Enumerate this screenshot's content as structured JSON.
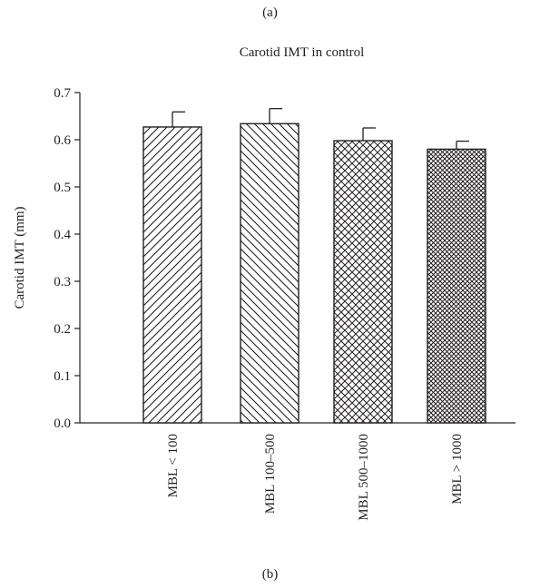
{
  "panel_label_top": "(a)",
  "panel_label_bottom": "(b)",
  "chart_data": {
    "type": "bar",
    "title": "Carotid IMT in control",
    "xlabel": "",
    "ylabel": "Carotid IMT (mm)",
    "categories": [
      "MBL < 100",
      "MBL 100–500",
      "MBL 500–1000",
      "MBL > 1000"
    ],
    "values": [
      0.627,
      0.634,
      0.598,
      0.58
    ],
    "errors": [
      0.032,
      0.032,
      0.027,
      0.017
    ],
    "ylim": [
      0.0,
      0.7
    ],
    "yticks": [
      "0.0",
      "0.1",
      "0.2",
      "0.3",
      "0.4",
      "0.5",
      "0.6",
      "0.7"
    ],
    "patterns": [
      "diagonal-up",
      "diagonal-down",
      "crosshatch",
      "dense-crosshatch"
    ],
    "grid": false,
    "colors": {
      "ink": "#231f20",
      "fill": "#ffffff"
    }
  }
}
